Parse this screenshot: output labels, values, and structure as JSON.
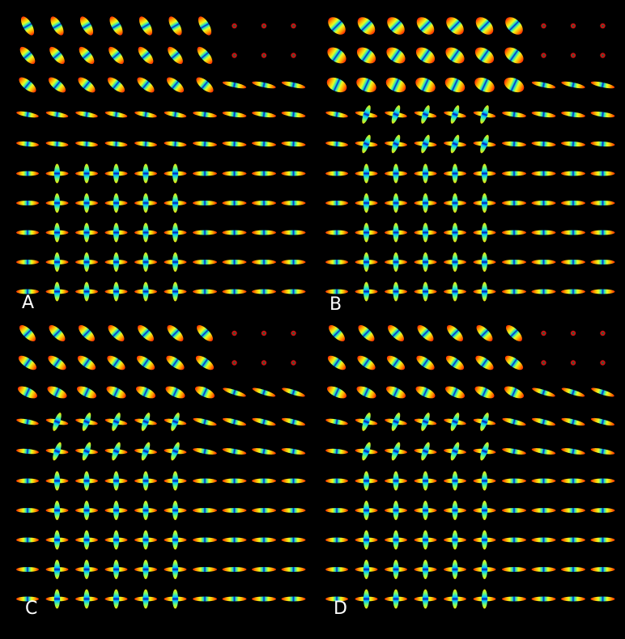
{
  "figure": {
    "background": "#000000",
    "glyph_type": "fiber orientation distribution glyphs (ODF), colored with a jet colormap",
    "grid": {
      "rows": 10,
      "cols": 10
    },
    "colormap": [
      "#00007f",
      "#0000ff",
      "#00bfff",
      "#40ff80",
      "#ffff00",
      "#ff8000",
      "#ff0000",
      "#800000"
    ],
    "panels": [
      {
        "label": "A"
      },
      {
        "label": "B"
      },
      {
        "label": "C"
      },
      {
        "label": "D"
      }
    ]
  }
}
